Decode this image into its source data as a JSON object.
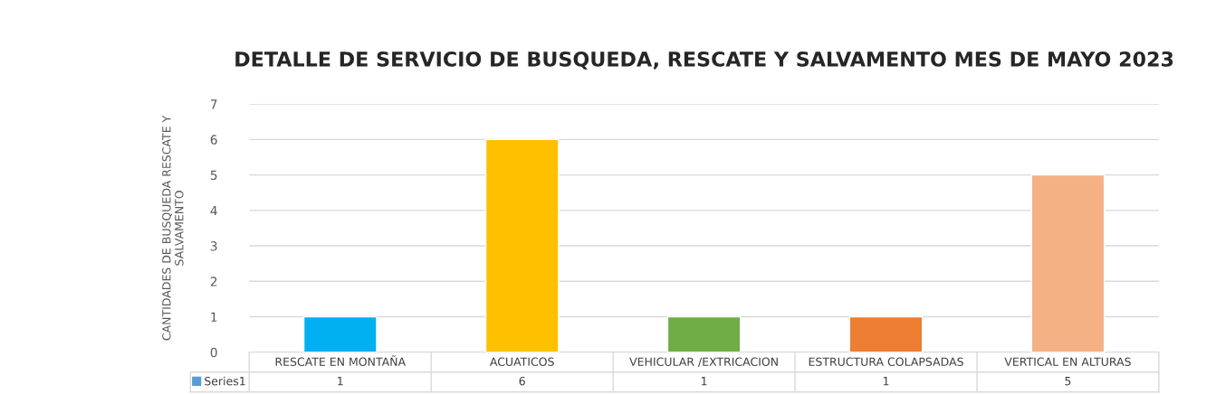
{
  "chart_data": {
    "type": "bar",
    "title": "DETALLE DE SERVICIO DE BUSQUEDA, RESCATE Y SALVAMENTO MES DE MAYO 2023",
    "ylabel": "CANTIDADES DE BUSQUEDA RESCATE Y\nSALVAMENTO",
    "categories": [
      "RESCATE EN MONTAÑA",
      "ACUATICOS",
      "VEHICULAR /EXTRICACION",
      "ESTRUCTURA COLAPSADAS",
      "VERTICAL EN ALTURAS"
    ],
    "series": [
      {
        "name": "Series1",
        "color": "#5b9bd5",
        "colors": [
          "#00b0f0",
          "#ffc000",
          "#70ad47",
          "#ed7d31",
          "#f4b183"
        ],
        "values": [
          1,
          6,
          1,
          1,
          5
        ]
      }
    ],
    "ylim": [
      0,
      7
    ],
    "yticks": [
      0,
      1,
      2,
      3,
      4,
      5,
      6,
      7
    ],
    "grid": "y",
    "data_labels": true,
    "legend": "bottom"
  }
}
